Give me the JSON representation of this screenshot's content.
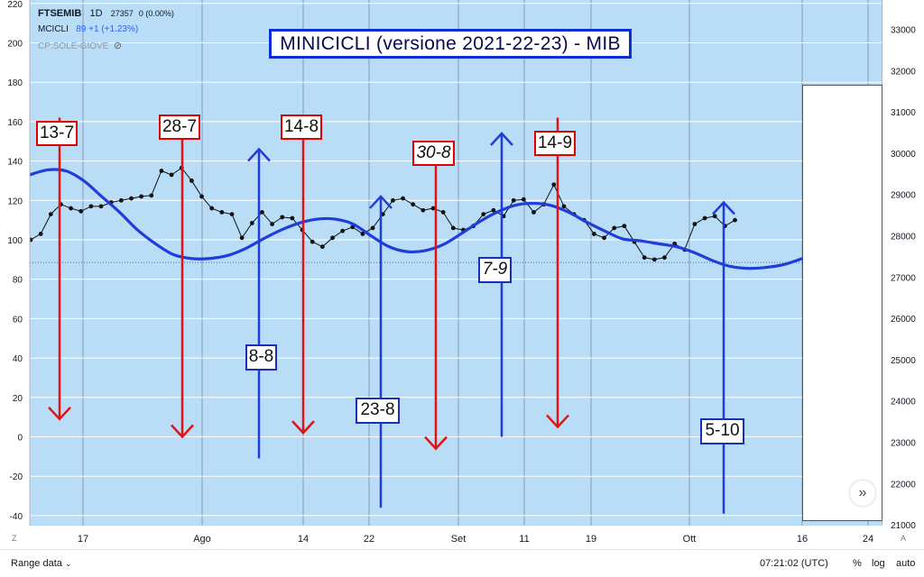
{
  "header": {
    "symbol": "FTSEMIB",
    "interval": "1D",
    "last_price": "27357",
    "change": "0 (0.00%)",
    "indicator_name": "MCICLI",
    "indicator_values": "89  +1 (+1.23%)",
    "study_name": "CP:SOLE-GIOVE",
    "eye_icon": "eye-slash-icon"
  },
  "title": "MINICICLI (versione 2021-22-23) - MIB",
  "bottom_bar": {
    "range_label": "Range data",
    "range_icon": "chevron-down-icon",
    "time": "07:21:02 (UTC)",
    "percent": "%",
    "log": "log",
    "auto": "auto"
  },
  "corners": {
    "left": "Z",
    "right": "A"
  },
  "nav_icon": "double-chevron-right-icon",
  "colors": {
    "background": "#b9dcf7",
    "red_arrow": "#e21313",
    "blue_arrow": "#1f3ddb",
    "cycle_line": "#1f3ddb",
    "price_line": "#111111"
  },
  "chart_data": {
    "type": "line",
    "left_axis": {
      "ticks": [
        220,
        200,
        180,
        160,
        140,
        120,
        100,
        80,
        60,
        40,
        20,
        0,
        -20,
        -40
      ],
      "ylim": [
        -43,
        220
      ]
    },
    "right_axis": {
      "ticks": [
        33000,
        32000,
        31000,
        30000,
        29000,
        28000,
        27000,
        26000,
        25000,
        24000,
        23000,
        22000,
        21000
      ]
    },
    "x_ticks": [
      "17",
      "Ago",
      "14",
      "22",
      "Set",
      "11",
      "19",
      "Ott",
      "16",
      "24"
    ],
    "dotted_level": 88.5,
    "series": [
      {
        "kind": "price",
        "y": [
          100,
          103,
          113,
          118,
          116,
          114.5,
          117,
          117,
          119,
          120,
          121,
          122,
          122.5,
          135,
          133,
          136.5,
          130,
          122,
          116,
          114,
          113,
          101,
          108.5,
          114,
          108,
          111.5,
          111,
          105,
          99,
          96.5,
          101,
          104.5,
          106.5,
          103,
          106,
          113,
          120,
          121,
          118,
          115,
          116,
          114,
          106,
          105,
          107,
          113,
          115,
          112,
          120,
          120.5,
          114,
          118,
          128,
          117,
          113,
          110,
          103,
          101,
          106,
          107,
          99,
          91,
          90,
          91,
          98,
          95,
          108,
          111,
          112,
          107,
          110
        ]
      },
      {
        "kind": "cycle",
        "y": [
          133,
          135.5,
          135,
          130,
          122,
          114,
          105,
          98,
          92.5,
          90.5,
          90.5,
          92,
          95.5,
          100.5,
          105,
          108.5,
          110.5,
          110.5,
          108,
          102,
          96.5,
          94,
          94.5,
          97.5,
          103,
          109,
          114,
          117.5,
          118.5,
          117.5,
          114,
          109,
          104.5,
          100.5,
          99.5,
          98,
          96.5,
          93.5,
          89.5,
          86.5,
          85.5,
          86,
          87.5,
          90.5
        ]
      }
    ],
    "arrows": [
      {
        "label": "13-7",
        "date": "13-7",
        "color": "red",
        "direction": "down",
        "from": 162,
        "to": 9
      },
      {
        "label": "28-7",
        "date": "28-7",
        "color": "red",
        "direction": "down",
        "from": 162,
        "to": 0
      },
      {
        "label": "8-8",
        "date": "8-8",
        "color": "blue",
        "direction": "up",
        "from": -11,
        "to": 146
      },
      {
        "label": "14-8",
        "date": "14-8",
        "color": "red",
        "direction": "down",
        "from": 162,
        "to": 2
      },
      {
        "label": "23-8",
        "date": "23-8",
        "color": "blue",
        "direction": "up",
        "from": -36,
        "to": 122
      },
      {
        "label": "30-8",
        "date": "30-8",
        "color": "red",
        "direction": "down",
        "from": 138,
        "to": -6
      },
      {
        "label": "7-9",
        "date": "7-9",
        "color": "blue",
        "direction": "up",
        "from": 0,
        "to": 154
      },
      {
        "label": "14-9",
        "date": "14-9",
        "color": "red",
        "direction": "down",
        "from": 162,
        "to": 5
      },
      {
        "label": "5-10",
        "date": "5-10",
        "color": "blue",
        "direction": "up",
        "from": -39,
        "to": 119
      }
    ]
  }
}
